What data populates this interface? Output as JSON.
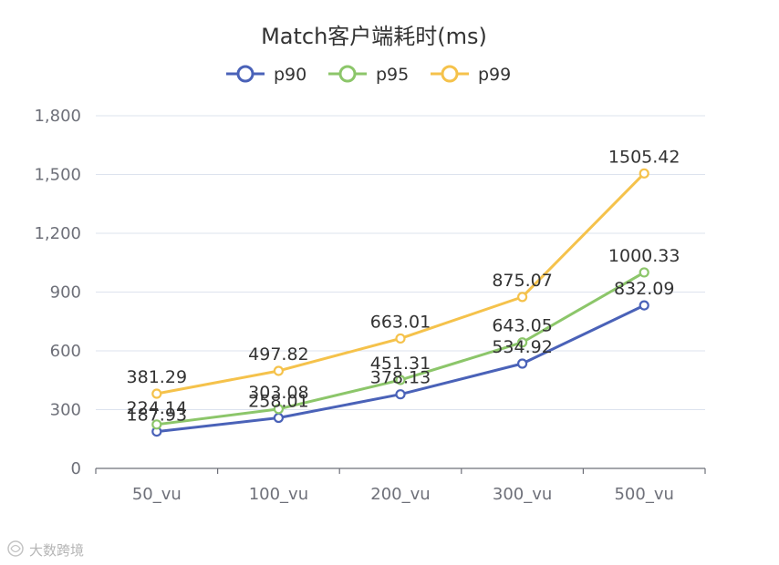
{
  "chart_data": {
    "type": "line",
    "title": "Match客户端耗时(ms)",
    "categories": [
      "50_vu",
      "100_vu",
      "200_vu",
      "300_vu",
      "500_vu"
    ],
    "series": [
      {
        "name": "p90",
        "color": "#4a62b8",
        "values": [
          187.93,
          258.01,
          378.13,
          534.92,
          832.09
        ]
      },
      {
        "name": "p95",
        "color": "#8cc66a",
        "values": [
          224.14,
          303.08,
          451.31,
          643.05,
          1000.33
        ]
      },
      {
        "name": "p99",
        "color": "#f5c24b",
        "values": [
          381.29,
          497.82,
          663.01,
          875.07,
          1505.42
        ]
      }
    ],
    "yticks": [
      "0",
      "300",
      "600",
      "900",
      "1,200",
      "1,500",
      "1,800"
    ],
    "ylim": [
      0,
      1800
    ],
    "grid": true,
    "legend": "top-center"
  },
  "watermark": {
    "text": "大数跨境",
    "icon": "watermark-logo-icon"
  }
}
